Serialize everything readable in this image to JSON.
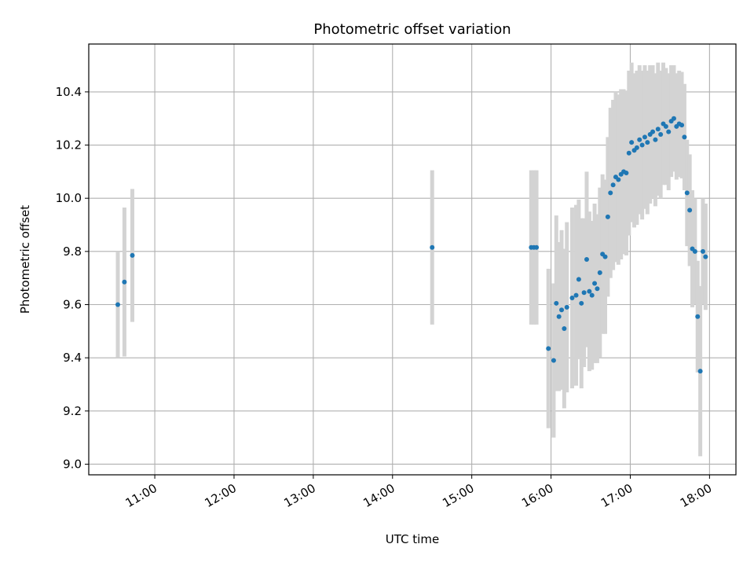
{
  "chart_data": {
    "type": "scatter",
    "title": "Photometric offset variation",
    "xlabel": "UTC time",
    "ylabel": "Photometric offset",
    "x_tick_labels": [
      "11:00",
      "12:00",
      "13:00",
      "14:00",
      "15:00",
      "16:00",
      "17:00",
      "18:00"
    ],
    "y_tick_labels": [
      "9.0",
      "9.2",
      "9.4",
      "9.6",
      "9.8",
      "10.0",
      "10.2",
      "10.4"
    ],
    "x_ticks": [
      "11:00",
      "12:00",
      "13:00",
      "14:00",
      "15:00",
      "16:00",
      "17:00",
      "18:00"
    ],
    "y_ticks": [
      9.0,
      9.2,
      9.4,
      9.6,
      9.8,
      10.0,
      10.2,
      10.4
    ],
    "xlim": [
      "10:10",
      "18:20"
    ],
    "ylim": [
      8.96,
      10.58
    ],
    "grid": true,
    "point_color": "#1f77b4",
    "errorbar_color": "#d3d3d3",
    "x": [
      "10:32",
      "10:37",
      "10:43",
      "14:30",
      "15:45",
      "15:47",
      "15:49",
      "15:58",
      "16:02",
      "16:04",
      "16:06",
      "16:08",
      "16:10",
      "16:12",
      "16:16",
      "16:19",
      "16:21",
      "16:23",
      "16:25",
      "16:27",
      "16:29",
      "16:31",
      "16:33",
      "16:35",
      "16:37",
      "16:39",
      "16:41",
      "16:43",
      "16:45",
      "16:47",
      "16:49",
      "16:51",
      "16:53",
      "16:55",
      "16:57",
      "16:59",
      "17:01",
      "17:03",
      "17:05",
      "17:07",
      "17:09",
      "17:11",
      "17:13",
      "17:15",
      "17:17",
      "17:19",
      "17:21",
      "17:23",
      "17:25",
      "17:27",
      "17:29",
      "17:31",
      "17:33",
      "17:35",
      "17:37",
      "17:39",
      "17:41",
      "17:43",
      "17:45",
      "17:47",
      "17:49",
      "17:51",
      "17:53",
      "17:55",
      "17:57"
    ],
    "y": [
      9.6,
      9.685,
      9.785,
      9.815,
      9.815,
      9.815,
      9.815,
      9.435,
      9.39,
      9.605,
      9.555,
      9.58,
      9.51,
      9.59,
      9.625,
      9.635,
      9.695,
      9.605,
      9.645,
      9.77,
      9.65,
      9.635,
      9.68,
      9.66,
      9.72,
      9.79,
      9.78,
      9.93,
      10.02,
      10.05,
      10.08,
      10.07,
      10.09,
      10.1,
      10.095,
      10.17,
      10.21,
      10.18,
      10.19,
      10.22,
      10.2,
      10.23,
      10.21,
      10.24,
      10.25,
      10.22,
      10.26,
      10.24,
      10.28,
      10.27,
      10.25,
      10.29,
      10.3,
      10.27,
      10.28,
      10.275,
      10.23,
      10.02,
      9.955,
      9.81,
      9.8,
      9.555,
      9.35,
      9.8,
      9.78
    ],
    "yerr": [
      0.2,
      0.28,
      0.25,
      0.29,
      0.29,
      0.29,
      0.29,
      0.3,
      0.29,
      0.33,
      0.28,
      0.3,
      0.3,
      0.32,
      0.34,
      0.34,
      0.3,
      0.32,
      0.28,
      0.33,
      0.3,
      0.28,
      0.3,
      0.28,
      0.32,
      0.3,
      0.29,
      0.3,
      0.32,
      0.32,
      0.32,
      0.32,
      0.32,
      0.31,
      0.31,
      0.31,
      0.3,
      0.29,
      0.29,
      0.28,
      0.28,
      0.27,
      0.27,
      0.26,
      0.25,
      0.25,
      0.25,
      0.24,
      0.23,
      0.22,
      0.22,
      0.21,
      0.2,
      0.2,
      0.2,
      0.2,
      0.2,
      0.2,
      0.21,
      0.22,
      0.2,
      0.21,
      0.32,
      0.2,
      0.2
    ]
  }
}
